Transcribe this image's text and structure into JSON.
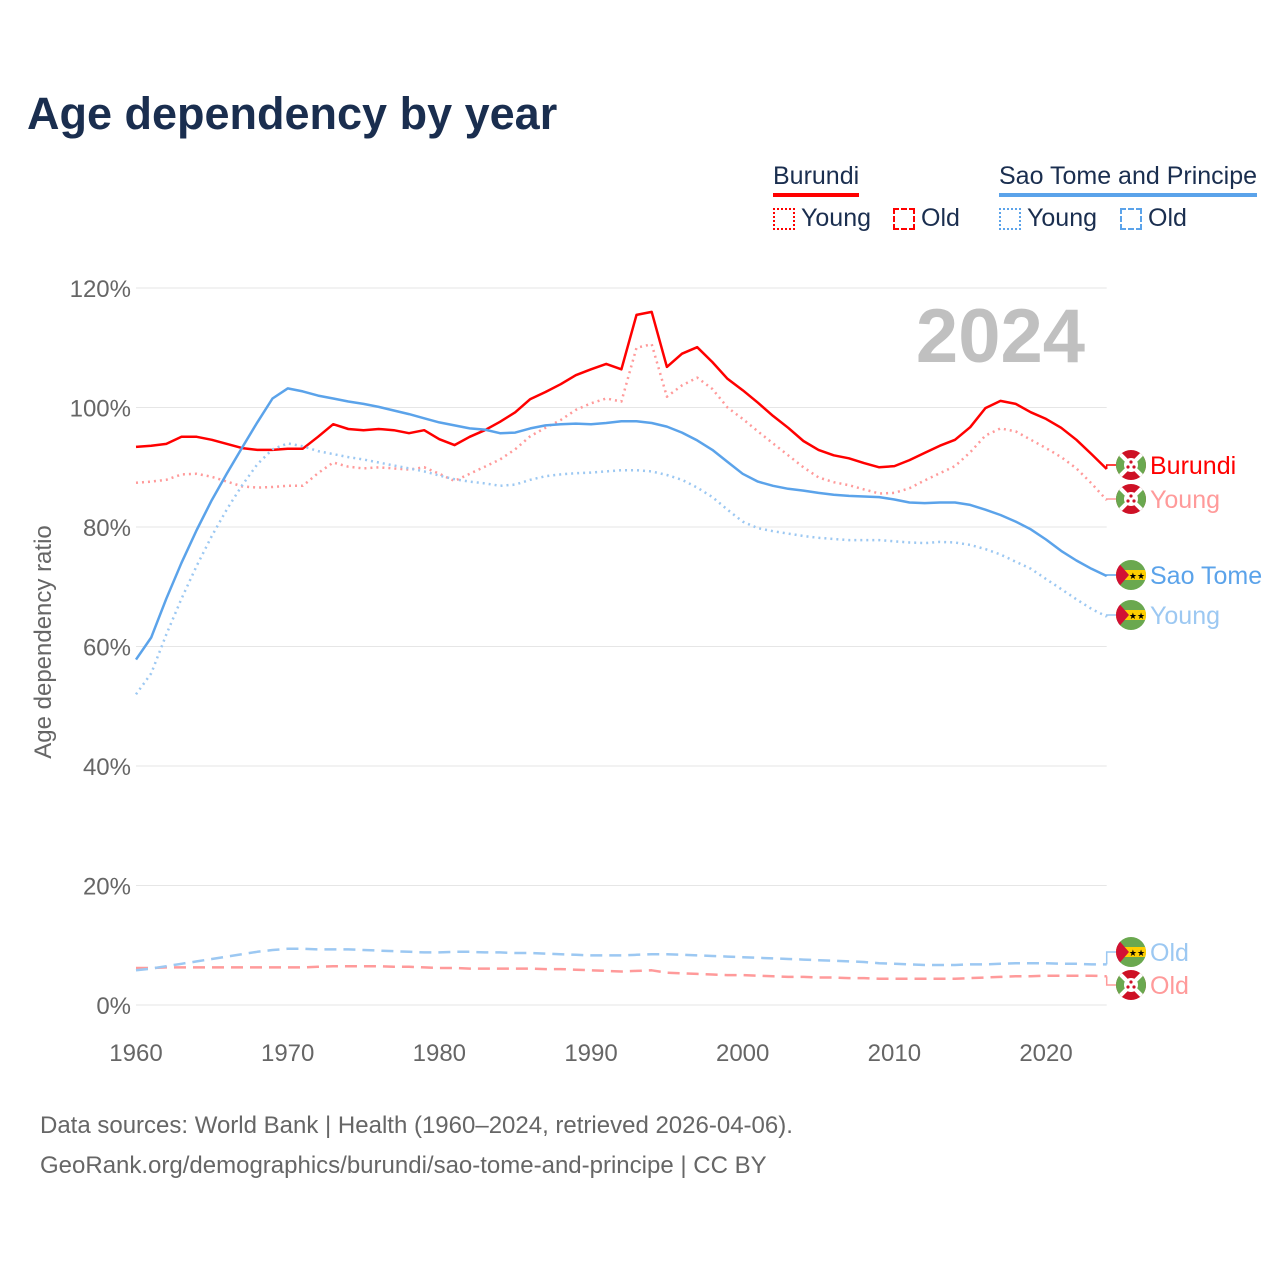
{
  "title": "Age dependency by year",
  "legend": {
    "countries": [
      {
        "name": "Burundi",
        "color": "#ff0000",
        "young_label": "Young",
        "old_label": "Old"
      },
      {
        "name": "Sao Tome and Principe",
        "color": "#5ba3ea",
        "young_label": "Young",
        "old_label": "Old"
      }
    ]
  },
  "footer": {
    "line1": "Data sources: World Bank | Health (1960–2024, retrieved 2026-04-06).",
    "line2": "GeoRank.org/demographics/burundi/sao-tome-and-principe | CC BY"
  },
  "chart_data": {
    "type": "line",
    "title": "Age dependency by year",
    "xlabel": "",
    "ylabel": "Age dependency ratio",
    "year_watermark": "2024",
    "xlim": [
      1960,
      2024
    ],
    "ylim": [
      0,
      120
    ],
    "x_ticks": [
      "1960",
      "1970",
      "1980",
      "1990",
      "2000",
      "2010",
      "2020"
    ],
    "y_ticks": [
      "0%",
      "20%",
      "40%",
      "60%",
      "80%",
      "100%",
      "120%"
    ],
    "grid": true,
    "x_start": 1960,
    "series": [
      {
        "name": "Burundi",
        "end_label": "Burundi",
        "country": "burundi",
        "style": "solid",
        "color": "#ff0000",
        "values": [
          93.4,
          93.6,
          93.9,
          95.1,
          95.1,
          94.6,
          93.9,
          93.2,
          92.9,
          92.9,
          93.1,
          93.1,
          95.1,
          97.2,
          96.4,
          96.2,
          96.4,
          96.2,
          95.7,
          96.2,
          94.7,
          93.7,
          95.1,
          96.2,
          97.6,
          99.2,
          101.4,
          102.6,
          103.9,
          105.4,
          106.4,
          107.3,
          106.4,
          115.5,
          116.0,
          106.8,
          109.0,
          110.1,
          107.6,
          104.8,
          102.9,
          100.8,
          98.6,
          96.6,
          94.4,
          92.9,
          92.0,
          91.5,
          90.7,
          90.0,
          90.2,
          91.2,
          92.4,
          93.6,
          94.6,
          96.7,
          99.9,
          101.1,
          100.6,
          99.2,
          98.1,
          96.6,
          94.6,
          92.2,
          89.7
        ]
      },
      {
        "name": "Burundi Young",
        "end_label": "Young",
        "country": "burundi",
        "style": "dotted",
        "color": "#ff9a9a",
        "values": [
          87.4,
          87.6,
          87.9,
          88.8,
          88.9,
          88.4,
          87.6,
          86.8,
          86.6,
          86.7,
          86.9,
          86.9,
          89.0,
          90.8,
          90.1,
          89.8,
          90.0,
          89.8,
          89.6,
          90.0,
          88.9,
          87.7,
          88.9,
          90.1,
          91.3,
          93.0,
          95.2,
          96.6,
          97.9,
          99.6,
          100.7,
          101.5,
          101.0,
          110.0,
          110.6,
          101.8,
          103.7,
          105.0,
          103.1,
          100.0,
          98.1,
          96.0,
          94.0,
          92.0,
          90.0,
          88.3,
          87.5,
          87.0,
          86.3,
          85.6,
          85.7,
          86.5,
          87.8,
          89.0,
          90.2,
          92.5,
          95.3,
          96.5,
          96.0,
          94.6,
          93.2,
          91.7,
          89.8,
          87.3,
          84.5
        ]
      },
      {
        "name": "Burundi Old",
        "end_label": "Old",
        "country": "burundi",
        "style": "dashed",
        "color": "#ff9a9a",
        "values": [
          6.2,
          6.2,
          6.3,
          6.3,
          6.3,
          6.3,
          6.3,
          6.3,
          6.3,
          6.3,
          6.3,
          6.3,
          6.4,
          6.5,
          6.5,
          6.5,
          6.5,
          6.4,
          6.4,
          6.3,
          6.2,
          6.2,
          6.1,
          6.1,
          6.1,
          6.1,
          6.1,
          6.0,
          6.0,
          5.9,
          5.8,
          5.7,
          5.6,
          5.7,
          5.8,
          5.4,
          5.3,
          5.2,
          5.1,
          5.0,
          5.0,
          4.9,
          4.8,
          4.7,
          4.7,
          4.6,
          4.6,
          4.5,
          4.5,
          4.4,
          4.4,
          4.4,
          4.4,
          4.4,
          4.4,
          4.5,
          4.6,
          4.7,
          4.8,
          4.8,
          4.9,
          4.9,
          4.9,
          4.9,
          4.8
        ]
      },
      {
        "name": "Sao Tome and Principe",
        "end_label": "Sao Tome",
        "country": "stp",
        "style": "solid",
        "color": "#5ba3ea",
        "values": [
          57.8,
          61.5,
          68.0,
          74.0,
          79.5,
          84.5,
          89.0,
          93.3,
          97.5,
          101.5,
          103.2,
          102.7,
          102.0,
          101.5,
          101.0,
          100.6,
          100.1,
          99.5,
          98.9,
          98.2,
          97.5,
          97.0,
          96.5,
          96.3,
          95.7,
          95.8,
          96.5,
          97.0,
          97.2,
          97.3,
          97.2,
          97.4,
          97.7,
          97.7,
          97.4,
          96.8,
          95.8,
          94.5,
          92.9,
          90.9,
          88.9,
          87.6,
          86.9,
          86.4,
          86.1,
          85.7,
          85.4,
          85.2,
          85.1,
          85.0,
          84.6,
          84.1,
          84.0,
          84.1,
          84.1,
          83.7,
          82.9,
          82.0,
          80.9,
          79.6,
          77.9,
          76.0,
          74.4,
          73.0,
          71.8
        ]
      },
      {
        "name": "Sao Tome and Principe Young",
        "end_label": "Young",
        "country": "stp",
        "style": "dotted",
        "color": "#9cc8f2",
        "values": [
          52.0,
          55.5,
          62.0,
          68.0,
          73.5,
          78.5,
          83.0,
          87.0,
          90.5,
          93.0,
          94.0,
          93.5,
          92.7,
          92.2,
          91.7,
          91.3,
          90.8,
          90.3,
          89.8,
          89.3,
          88.6,
          88.0,
          87.6,
          87.3,
          86.9,
          87.1,
          87.9,
          88.5,
          88.8,
          89.0,
          89.1,
          89.3,
          89.5,
          89.5,
          89.3,
          88.7,
          87.9,
          86.6,
          85.0,
          82.9,
          80.9,
          79.8,
          79.3,
          78.9,
          78.5,
          78.2,
          78.0,
          77.8,
          77.8,
          77.8,
          77.6,
          77.4,
          77.3,
          77.5,
          77.4,
          77.0,
          76.3,
          75.4,
          74.2,
          73.0,
          71.3,
          69.6,
          67.9,
          66.3,
          65.0
        ]
      },
      {
        "name": "Sao Tome and Principe Old",
        "end_label": "Old",
        "country": "stp",
        "style": "dashed",
        "color": "#9cc8f2",
        "values": [
          5.8,
          6.1,
          6.5,
          6.9,
          7.3,
          7.7,
          8.1,
          8.5,
          8.9,
          9.2,
          9.4,
          9.4,
          9.3,
          9.3,
          9.3,
          9.2,
          9.1,
          9.0,
          8.9,
          8.8,
          8.8,
          8.9,
          8.9,
          8.8,
          8.8,
          8.7,
          8.7,
          8.6,
          8.5,
          8.4,
          8.3,
          8.3,
          8.3,
          8.4,
          8.5,
          8.5,
          8.4,
          8.3,
          8.2,
          8.1,
          8.0,
          7.9,
          7.8,
          7.7,
          7.6,
          7.5,
          7.4,
          7.3,
          7.2,
          7.0,
          6.9,
          6.8,
          6.7,
          6.7,
          6.7,
          6.8,
          6.8,
          6.9,
          7.0,
          7.0,
          7.0,
          6.9,
          6.9,
          6.8,
          6.8
        ]
      }
    ]
  }
}
